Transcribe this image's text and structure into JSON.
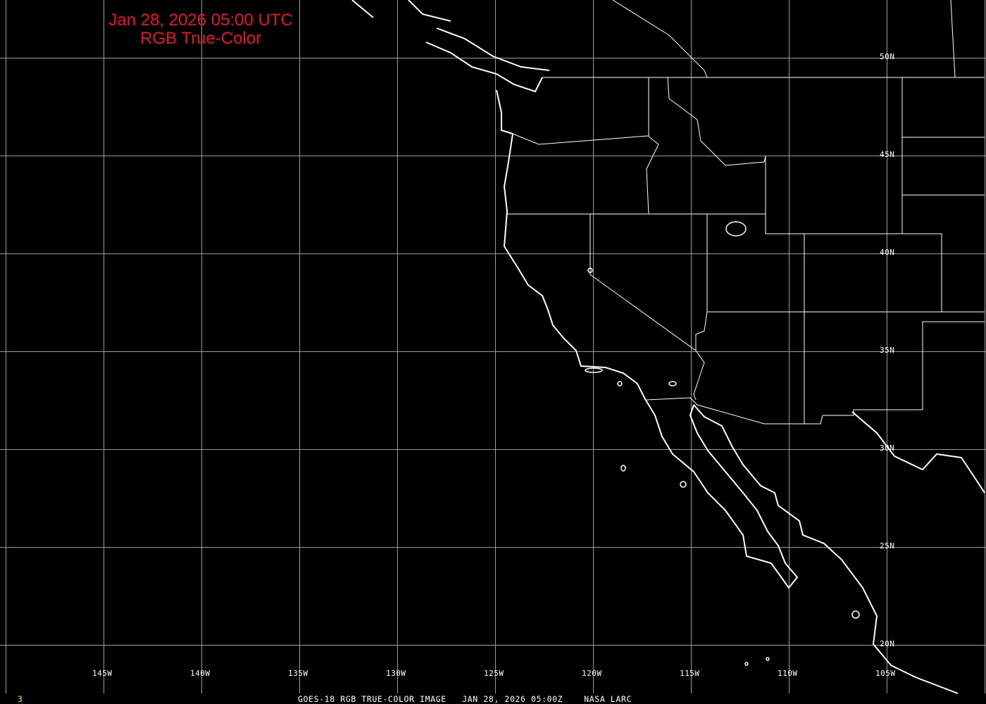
{
  "title": {
    "line1": "Jan 28, 2026 05:00 UTC",
    "line2": "RGB True-Color",
    "color": "#e8102a"
  },
  "grid": {
    "color": "#9a9a9a",
    "longitudes": [
      "150W",
      "145W",
      "140W",
      "135W",
      "130W",
      "125W",
      "120W",
      "115W",
      "110W",
      "105W",
      "100W"
    ],
    "lon_labels": [
      "145W",
      "140W",
      "135W",
      "130W",
      "125W",
      "120W",
      "115W",
      "110W",
      "105W"
    ],
    "lat_labels": [
      "50N",
      "45N",
      "40N",
      "35N",
      "30N",
      "25N",
      "20N"
    ]
  },
  "footer": {
    "frame_number": "3",
    "frame_color": "#f0e040",
    "caption": "GOES-18 RGB TRUE-COLOR IMAGE   JAN 28, 2026 05:00Z    NASA LARC"
  },
  "map": {
    "background": "#000000",
    "boundary_color": "#ffffff"
  }
}
